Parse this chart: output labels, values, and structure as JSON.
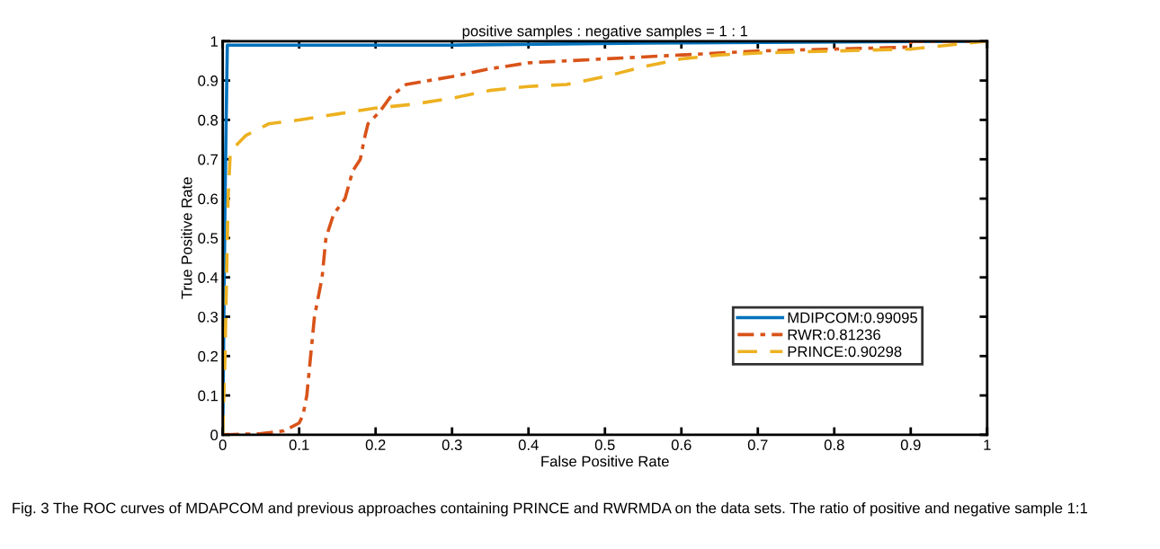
{
  "chart_data": {
    "type": "line",
    "title": "positive samples : negative samples = 1 : 1",
    "xlabel": "False Positive Rate",
    "ylabel": "True Positive Rate",
    "xlim": [
      0,
      1
    ],
    "ylim": [
      0,
      1
    ],
    "xticks": [
      0,
      0.1,
      0.2,
      0.3,
      0.4,
      0.5,
      0.6,
      0.7,
      0.8,
      0.9,
      1
    ],
    "yticks": [
      0,
      0.1,
      0.2,
      0.3,
      0.4,
      0.5,
      0.6,
      0.7,
      0.8,
      0.9,
      1
    ],
    "grid": false,
    "legend": "bottom right",
    "marker": "none",
    "annotations": [
      "Fig. 3 The ROC curves of MDAPCOM and previous approaches containing PRINCE and RWRMDA on the data sets. The ratio of positive and negative sample 1:1"
    ],
    "series": [
      {
        "name": "MDIPCOM:0.99095",
        "color": "#0072bd",
        "line_style": "solid",
        "x": [
          0,
          0.003,
          0.006,
          0.3,
          0.55,
          1
        ],
        "values": [
          0,
          0.6,
          0.99,
          0.99,
          0.995,
          1
        ]
      },
      {
        "name": "RWR:0.81236",
        "color": "#d95319",
        "line_style": "dashdot",
        "x": [
          0,
          0.05,
          0.08,
          0.1,
          0.105,
          0.11,
          0.115,
          0.12,
          0.13,
          0.135,
          0.145,
          0.16,
          0.17,
          0.18,
          0.185,
          0.19,
          0.205,
          0.22,
          0.24,
          0.3,
          0.35,
          0.4,
          0.5,
          0.6,
          0.7,
          0.8,
          0.9,
          0.9,
          1
        ],
        "values": [
          0,
          0.003,
          0.01,
          0.03,
          0.05,
          0.1,
          0.2,
          0.3,
          0.4,
          0.5,
          0.56,
          0.6,
          0.67,
          0.7,
          0.75,
          0.79,
          0.82,
          0.86,
          0.89,
          0.91,
          0.93,
          0.945,
          0.955,
          0.965,
          0.975,
          0.98,
          0.985,
          1.0,
          1
        ]
      },
      {
        "name": "PRINCE:0.90298",
        "color": "#edb120",
        "line_style": "dashed",
        "x": [
          0,
          0.003,
          0.005,
          0.007,
          0.01,
          0.03,
          0.06,
          0.1,
          0.15,
          0.2,
          0.25,
          0.3,
          0.35,
          0.4,
          0.45,
          0.5,
          0.55,
          0.6,
          0.65,
          0.7,
          0.8,
          0.9,
          0.95,
          1
        ],
        "values": [
          0,
          0.2,
          0.4,
          0.6,
          0.72,
          0.76,
          0.79,
          0.8,
          0.815,
          0.83,
          0.84,
          0.855,
          0.875,
          0.885,
          0.89,
          0.91,
          0.935,
          0.955,
          0.965,
          0.97,
          0.975,
          0.98,
          0.99,
          1
        ]
      }
    ]
  }
}
